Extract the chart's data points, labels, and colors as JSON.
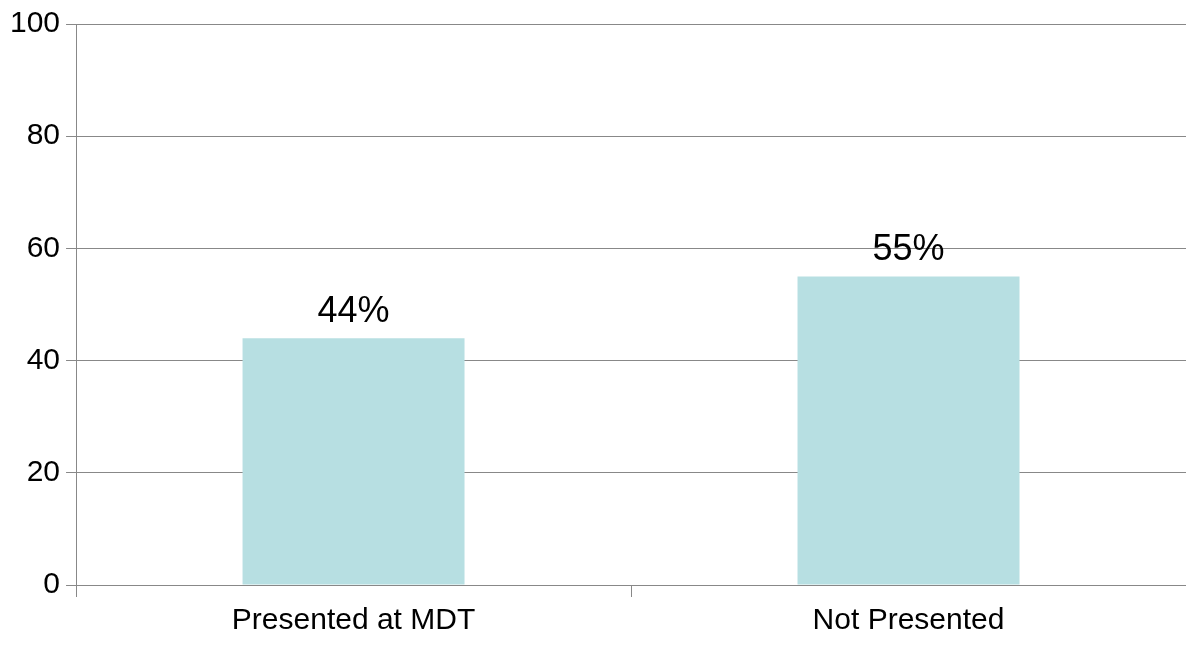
{
  "chart_data": {
    "type": "bar",
    "categories": [
      "Presented at MDT",
      "Not Presented"
    ],
    "values": [
      44,
      55
    ],
    "value_labels": [
      "44%",
      "55%"
    ],
    "color": "#b7dfe2",
    "ylim": [
      0,
      100
    ],
    "yticks": [
      0,
      20,
      40,
      60,
      80,
      100
    ],
    "grid": "y"
  }
}
